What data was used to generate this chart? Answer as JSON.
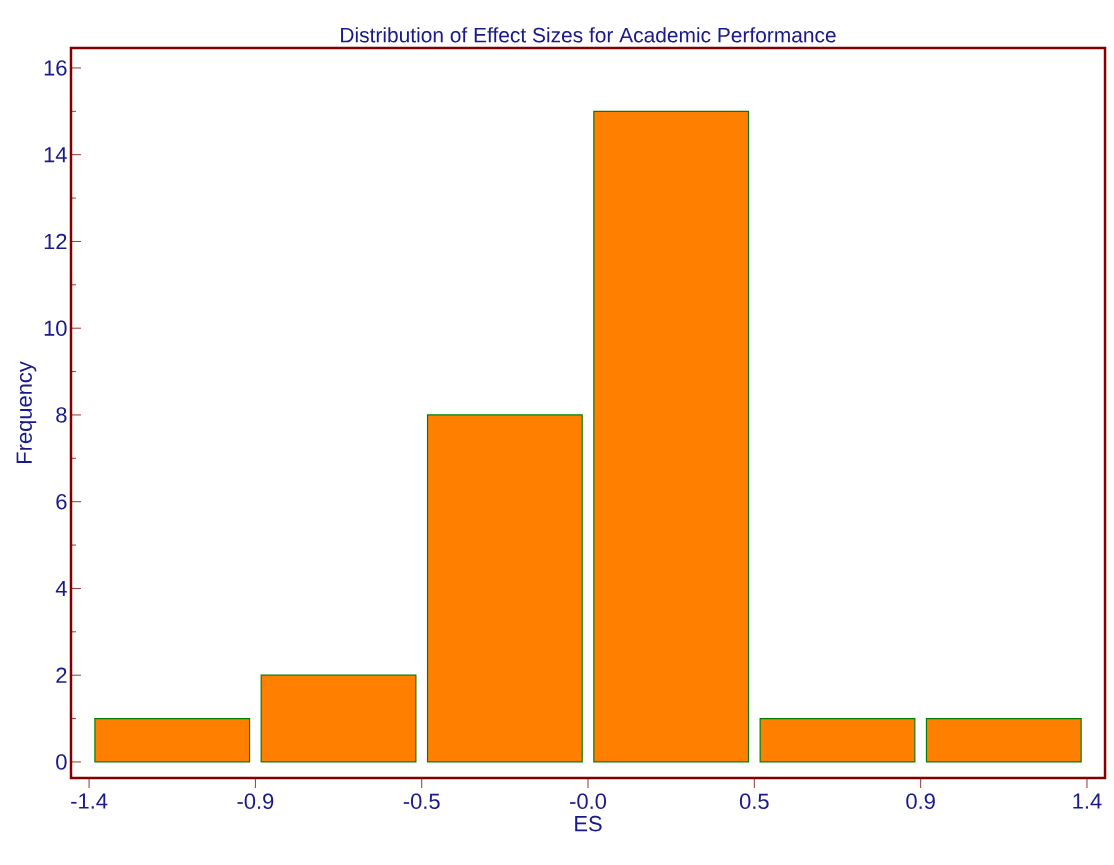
{
  "chart_data": {
    "type": "histogram",
    "title": "Distribution of  Effect Sizes for Academic Performance",
    "xlabel": "ES",
    "ylabel": "Frequency",
    "bins": [
      -1.38,
      -0.92,
      -0.46,
      0,
      0.46,
      0.92,
      1.38
    ],
    "values": [
      1,
      2,
      8,
      15,
      1,
      1
    ],
    "color": "#ff8000",
    "xlim": [
      -1.43,
      1.43
    ],
    "ylim": [
      -0.37,
      16.46
    ],
    "xticks": [
      {
        "value": -1.38,
        "label": "-1.4"
      },
      {
        "value": -0.92,
        "label": "-0.9"
      },
      {
        "value": -0.46,
        "label": "-0.5"
      },
      {
        "value": 0,
        "label": "-0.0"
      },
      {
        "value": 0.46,
        "label": "0.5"
      },
      {
        "value": 0.92,
        "label": "0.9"
      },
      {
        "value": 1.38,
        "label": "1.4"
      }
    ],
    "yticks": [
      0,
      2,
      4,
      6,
      8,
      10,
      12,
      14,
      16
    ],
    "grid": false
  }
}
